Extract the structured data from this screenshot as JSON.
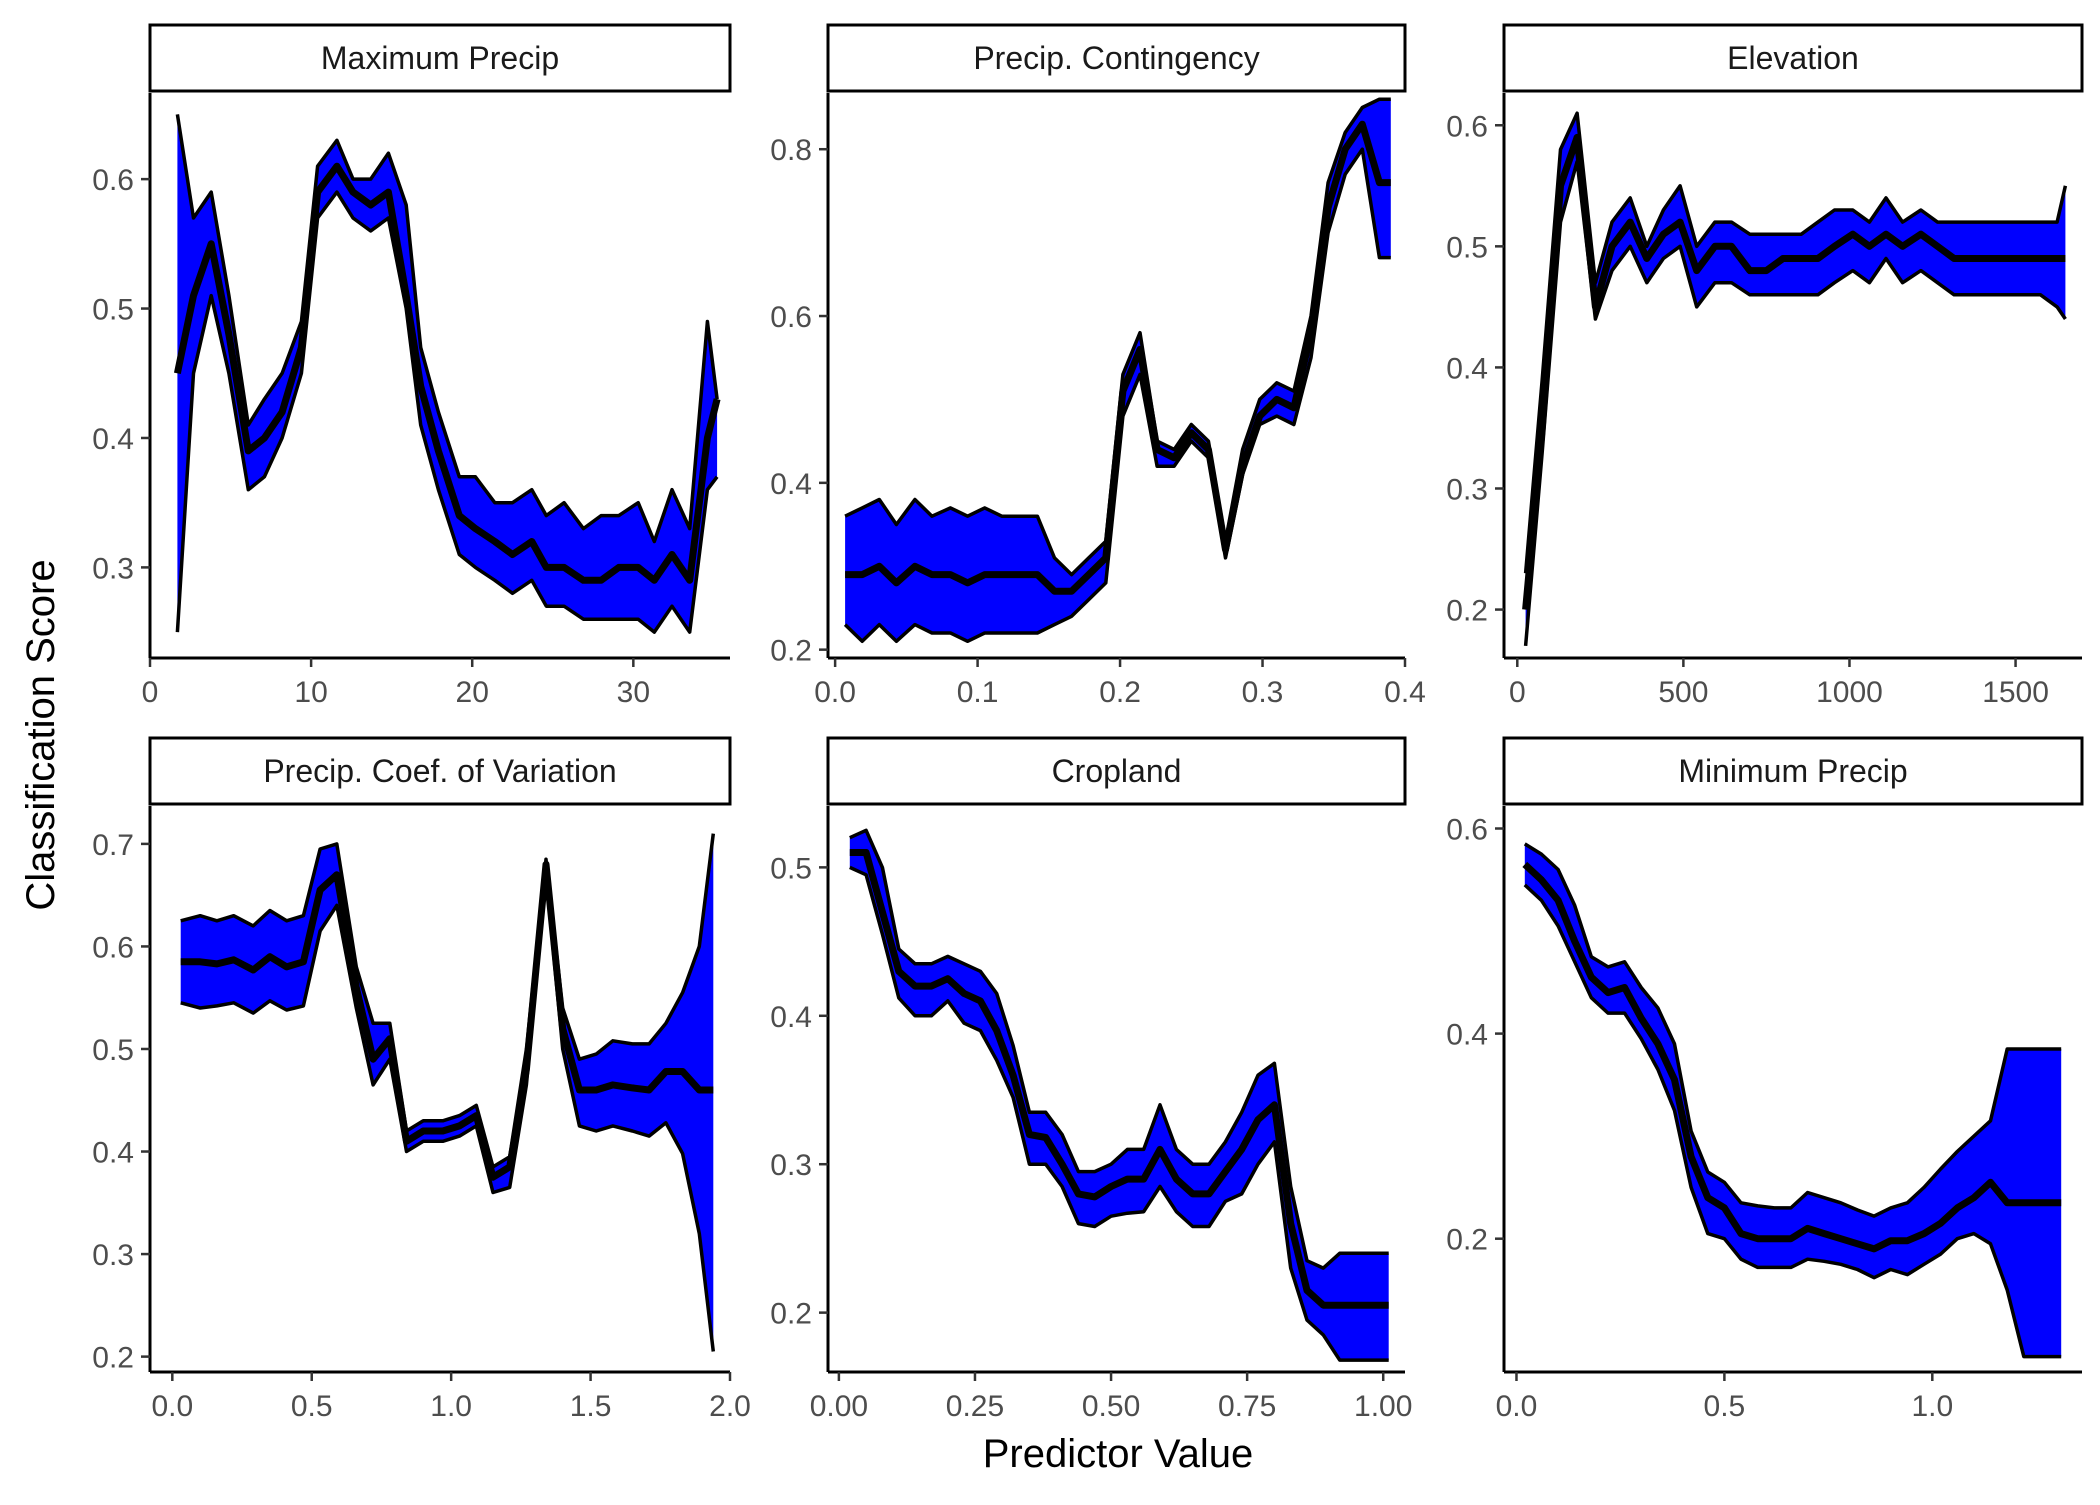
{
  "chart_data": {
    "type": "area",
    "xlabel": "Predictor Value",
    "ylabel": "Classification Score",
    "colors": {
      "band": "#0000ff",
      "line": "#000000"
    },
    "panels": [
      {
        "title": "Maximum Precip",
        "xlim": [
          0,
          36
        ],
        "ylim": [
          0.23,
          0.665
        ],
        "xticks": [
          0,
          10,
          20,
          30
        ],
        "xtick_labels": [
          "0",
          "10",
          "20",
          "30"
        ],
        "yticks": [
          0.3,
          0.4,
          0.5,
          0.6
        ],
        "ytick_labels": [
          "0.3",
          "0.4",
          "0.5",
          "0.6"
        ],
        "x": [
          1.7,
          2.7,
          3.8,
          4.9,
          6.1,
          7.1,
          8.2,
          9.4,
          10.4,
          11.6,
          12.6,
          13.7,
          14.8,
          15.9,
          16.8,
          17.9,
          19.2,
          20.2,
          21.4,
          22.5,
          23.7,
          24.6,
          25.7,
          26.9,
          28.0,
          29.1,
          30.3,
          31.3,
          32.4,
          33.5,
          34.6,
          35.2
        ],
        "mean": [
          0.45,
          0.51,
          0.55,
          0.48,
          0.39,
          0.4,
          0.42,
          0.47,
          0.59,
          0.61,
          0.59,
          0.58,
          0.59,
          0.51,
          0.44,
          0.39,
          0.34,
          0.33,
          0.32,
          0.31,
          0.32,
          0.3,
          0.3,
          0.29,
          0.29,
          0.3,
          0.3,
          0.29,
          0.31,
          0.29,
          0.4,
          0.43
        ],
        "upper": [
          0.65,
          0.57,
          0.59,
          0.51,
          0.41,
          0.43,
          0.45,
          0.49,
          0.61,
          0.63,
          0.6,
          0.6,
          0.62,
          0.58,
          0.47,
          0.42,
          0.37,
          0.37,
          0.35,
          0.35,
          0.36,
          0.34,
          0.35,
          0.33,
          0.34,
          0.34,
          0.35,
          0.32,
          0.36,
          0.33,
          0.49,
          0.43
        ],
        "lower": [
          0.25,
          0.45,
          0.51,
          0.45,
          0.36,
          0.37,
          0.4,
          0.45,
          0.57,
          0.59,
          0.57,
          0.56,
          0.57,
          0.5,
          0.41,
          0.36,
          0.31,
          0.3,
          0.29,
          0.28,
          0.29,
          0.27,
          0.27,
          0.26,
          0.26,
          0.26,
          0.26,
          0.25,
          0.27,
          0.25,
          0.36,
          0.37
        ]
      },
      {
        "title": "Precip. Contingency",
        "xlim": [
          -0.005,
          0.4
        ],
        "ylim": [
          0.19,
          0.865
        ],
        "xticks": [
          0.0,
          0.1,
          0.2,
          0.3,
          0.4
        ],
        "xtick_labels": [
          "0.0",
          "0.1",
          "0.2",
          "0.3",
          "0.4"
        ],
        "yticks": [
          0.2,
          0.4,
          0.6,
          0.8
        ],
        "ytick_labels": [
          "0.2",
          "0.4",
          "0.6",
          "0.8"
        ],
        "x": [
          0.007,
          0.019,
          0.031,
          0.043,
          0.056,
          0.068,
          0.081,
          0.093,
          0.105,
          0.117,
          0.13,
          0.142,
          0.154,
          0.166,
          0.178,
          0.19,
          0.202,
          0.214,
          0.226,
          0.238,
          0.25,
          0.262,
          0.274,
          0.286,
          0.298,
          0.31,
          0.322,
          0.334,
          0.346,
          0.358,
          0.37,
          0.382,
          0.39
        ],
        "mean": [
          0.29,
          0.29,
          0.3,
          0.28,
          0.3,
          0.29,
          0.29,
          0.28,
          0.29,
          0.29,
          0.29,
          0.29,
          0.27,
          0.27,
          0.29,
          0.31,
          0.51,
          0.56,
          0.44,
          0.43,
          0.46,
          0.44,
          0.32,
          0.42,
          0.48,
          0.5,
          0.49,
          0.58,
          0.73,
          0.8,
          0.83,
          0.76,
          0.76
        ],
        "upper": [
          0.36,
          0.37,
          0.38,
          0.35,
          0.38,
          0.36,
          0.37,
          0.36,
          0.37,
          0.36,
          0.36,
          0.36,
          0.31,
          0.29,
          0.31,
          0.33,
          0.53,
          0.58,
          0.45,
          0.44,
          0.47,
          0.45,
          0.33,
          0.44,
          0.5,
          0.52,
          0.51,
          0.6,
          0.76,
          0.82,
          0.85,
          0.86,
          0.86
        ],
        "lower": [
          0.23,
          0.21,
          0.23,
          0.21,
          0.23,
          0.22,
          0.22,
          0.21,
          0.22,
          0.22,
          0.22,
          0.22,
          0.23,
          0.24,
          0.26,
          0.28,
          0.48,
          0.53,
          0.42,
          0.42,
          0.45,
          0.43,
          0.31,
          0.41,
          0.47,
          0.48,
          0.47,
          0.55,
          0.7,
          0.77,
          0.8,
          0.67,
          0.67
        ]
      },
      {
        "title": "Elevation",
        "xlim": [
          -40,
          1700
        ],
        "ylim": [
          0.16,
          0.625
        ],
        "xticks": [
          0,
          500,
          1000,
          1500
        ],
        "xtick_labels": [
          "0",
          "500",
          "1000",
          "1500"
        ],
        "yticks": [
          0.2,
          0.3,
          0.4,
          0.5,
          0.6
        ],
        "ytick_labels": [
          "0.2",
          "0.3",
          "0.4",
          "0.5",
          "0.6"
        ],
        "x": [
          25,
          75,
          130,
          180,
          235,
          285,
          340,
          390,
          440,
          490,
          540,
          595,
          645,
          700,
          750,
          800,
          855,
          905,
          955,
          1010,
          1060,
          1110,
          1160,
          1215,
          1265,
          1315,
          1370,
          1420,
          1470,
          1525,
          1575,
          1625,
          1650
        ],
        "mean": [
          0.2,
          0.35,
          0.55,
          0.59,
          0.45,
          0.5,
          0.52,
          0.49,
          0.51,
          0.52,
          0.48,
          0.5,
          0.5,
          0.48,
          0.48,
          0.49,
          0.49,
          0.49,
          0.5,
          0.51,
          0.5,
          0.51,
          0.5,
          0.51,
          0.5,
          0.49,
          0.49,
          0.49,
          0.49,
          0.49,
          0.49,
          0.49,
          0.49
        ],
        "upper": [
          0.23,
          0.39,
          0.58,
          0.61,
          0.47,
          0.52,
          0.54,
          0.5,
          0.53,
          0.55,
          0.5,
          0.52,
          0.52,
          0.51,
          0.51,
          0.51,
          0.51,
          0.52,
          0.53,
          0.53,
          0.52,
          0.54,
          0.52,
          0.53,
          0.52,
          0.52,
          0.52,
          0.52,
          0.52,
          0.52,
          0.52,
          0.52,
          0.55
        ],
        "lower": [
          0.17,
          0.33,
          0.52,
          0.57,
          0.44,
          0.48,
          0.5,
          0.47,
          0.49,
          0.5,
          0.45,
          0.47,
          0.47,
          0.46,
          0.46,
          0.46,
          0.46,
          0.46,
          0.47,
          0.48,
          0.47,
          0.49,
          0.47,
          0.48,
          0.47,
          0.46,
          0.46,
          0.46,
          0.46,
          0.46,
          0.46,
          0.45,
          0.44
        ]
      },
      {
        "title": "Precip. Coef. of Variation",
        "xlim": [
          -0.08,
          2.0
        ],
        "ylim": [
          0.185,
          0.735
        ],
        "xticks": [
          0.0,
          0.5,
          1.0,
          1.5,
          2.0
        ],
        "xtick_labels": [
          "0.0",
          "0.5",
          "1.0",
          "1.5",
          "2.0"
        ],
        "yticks": [
          0.2,
          0.3,
          0.4,
          0.5,
          0.6,
          0.7
        ],
        "ytick_labels": [
          "0.2",
          "0.3",
          "0.4",
          "0.5",
          "0.6",
          "0.7"
        ],
        "x": [
          0.03,
          0.1,
          0.16,
          0.22,
          0.29,
          0.35,
          0.41,
          0.47,
          0.53,
          0.59,
          0.66,
          0.72,
          0.78,
          0.84,
          0.9,
          0.97,
          1.03,
          1.09,
          1.15,
          1.21,
          1.27,
          1.34,
          1.4,
          1.46,
          1.52,
          1.58,
          1.65,
          1.71,
          1.77,
          1.83,
          1.89,
          1.94
        ],
        "mean": [
          0.585,
          0.585,
          0.583,
          0.587,
          0.577,
          0.59,
          0.58,
          0.585,
          0.655,
          0.67,
          0.56,
          0.49,
          0.51,
          0.41,
          0.42,
          0.42,
          0.425,
          0.435,
          0.375,
          0.385,
          0.48,
          0.68,
          0.52,
          0.46,
          0.46,
          0.465,
          0.462,
          0.46,
          0.478,
          0.478,
          0.46,
          0.46
        ],
        "upper": [
          0.625,
          0.63,
          0.625,
          0.63,
          0.62,
          0.635,
          0.625,
          0.63,
          0.695,
          0.7,
          0.58,
          0.525,
          0.525,
          0.42,
          0.43,
          0.43,
          0.435,
          0.445,
          0.385,
          0.395,
          0.5,
          0.685,
          0.54,
          0.49,
          0.495,
          0.508,
          0.505,
          0.505,
          0.525,
          0.555,
          0.6,
          0.71
        ],
        "lower": [
          0.545,
          0.54,
          0.542,
          0.545,
          0.535,
          0.547,
          0.538,
          0.542,
          0.615,
          0.64,
          0.54,
          0.465,
          0.49,
          0.4,
          0.41,
          0.41,
          0.415,
          0.425,
          0.36,
          0.365,
          0.465,
          0.67,
          0.5,
          0.425,
          0.42,
          0.425,
          0.42,
          0.415,
          0.428,
          0.398,
          0.32,
          0.205
        ]
      },
      {
        "title": "Cropland",
        "xlim": [
          -0.02,
          1.04
        ],
        "ylim": [
          0.16,
          0.54
        ],
        "xticks": [
          0.0,
          0.25,
          0.5,
          0.75,
          1.0
        ],
        "xtick_labels": [
          "0.00",
          "0.25",
          "0.50",
          "0.75",
          "1.00"
        ],
        "yticks": [
          0.2,
          0.3,
          0.4,
          0.5
        ],
        "ytick_labels": [
          "0.2",
          "0.3",
          "0.4",
          "0.5"
        ],
        "x": [
          0.02,
          0.05,
          0.08,
          0.11,
          0.14,
          0.17,
          0.2,
          0.23,
          0.26,
          0.29,
          0.32,
          0.35,
          0.38,
          0.41,
          0.44,
          0.47,
          0.5,
          0.53,
          0.56,
          0.59,
          0.62,
          0.65,
          0.68,
          0.71,
          0.74,
          0.77,
          0.8,
          0.83,
          0.86,
          0.89,
          0.92,
          0.95,
          0.98,
          1.01
        ],
        "mean": [
          0.51,
          0.51,
          0.47,
          0.43,
          0.42,
          0.42,
          0.425,
          0.415,
          0.41,
          0.39,
          0.36,
          0.32,
          0.318,
          0.3,
          0.28,
          0.278,
          0.285,
          0.29,
          0.29,
          0.31,
          0.29,
          0.28,
          0.28,
          0.295,
          0.31,
          0.33,
          0.34,
          0.26,
          0.215,
          0.205,
          0.205,
          0.205,
          0.205,
          0.205
        ],
        "upper": [
          0.52,
          0.525,
          0.5,
          0.445,
          0.435,
          0.435,
          0.44,
          0.435,
          0.43,
          0.415,
          0.38,
          0.335,
          0.335,
          0.32,
          0.295,
          0.295,
          0.3,
          0.31,
          0.31,
          0.34,
          0.31,
          0.3,
          0.3,
          0.315,
          0.335,
          0.36,
          0.368,
          0.285,
          0.235,
          0.23,
          0.24,
          0.24,
          0.24,
          0.24
        ],
        "lower": [
          0.5,
          0.495,
          0.455,
          0.412,
          0.4,
          0.4,
          0.41,
          0.395,
          0.39,
          0.37,
          0.345,
          0.3,
          0.3,
          0.285,
          0.26,
          0.258,
          0.265,
          0.267,
          0.268,
          0.285,
          0.268,
          0.258,
          0.258,
          0.275,
          0.28,
          0.3,
          0.315,
          0.23,
          0.195,
          0.185,
          0.168,
          0.168,
          0.168,
          0.168
        ]
      },
      {
        "title": "Minimum Precip",
        "xlim": [
          -0.03,
          1.36
        ],
        "ylim": [
          0.07,
          0.62
        ],
        "xticks": [
          0.0,
          0.5,
          1.0
        ],
        "xtick_labels": [
          "0.0",
          "0.5",
          "1.0"
        ],
        "yticks": [
          0.2,
          0.4,
          0.6
        ],
        "ytick_labels": [
          "0.2",
          "0.4",
          "0.6"
        ],
        "x": [
          0.02,
          0.06,
          0.1,
          0.14,
          0.18,
          0.22,
          0.26,
          0.3,
          0.34,
          0.38,
          0.42,
          0.46,
          0.5,
          0.54,
          0.58,
          0.62,
          0.66,
          0.7,
          0.74,
          0.78,
          0.82,
          0.86,
          0.9,
          0.94,
          0.98,
          1.02,
          1.06,
          1.1,
          1.14,
          1.18,
          1.22,
          1.26,
          1.3,
          1.31
        ],
        "mean": [
          0.565,
          0.55,
          0.53,
          0.49,
          0.455,
          0.44,
          0.445,
          0.415,
          0.39,
          0.355,
          0.28,
          0.24,
          0.23,
          0.205,
          0.2,
          0.2,
          0.2,
          0.21,
          0.205,
          0.2,
          0.195,
          0.19,
          0.198,
          0.198,
          0.205,
          0.215,
          0.23,
          0.24,
          0.255,
          0.235,
          0.235,
          0.235,
          0.235,
          0.235
        ],
        "upper": [
          0.585,
          0.575,
          0.56,
          0.525,
          0.475,
          0.465,
          0.47,
          0.445,
          0.425,
          0.39,
          0.305,
          0.265,
          0.255,
          0.235,
          0.232,
          0.23,
          0.23,
          0.245,
          0.24,
          0.235,
          0.228,
          0.222,
          0.23,
          0.235,
          0.25,
          0.268,
          0.285,
          0.3,
          0.315,
          0.385,
          0.385,
          0.385,
          0.385,
          0.385
        ],
        "lower": [
          0.545,
          0.53,
          0.505,
          0.47,
          0.435,
          0.42,
          0.42,
          0.395,
          0.365,
          0.325,
          0.25,
          0.205,
          0.2,
          0.18,
          0.172,
          0.172,
          0.172,
          0.18,
          0.178,
          0.175,
          0.17,
          0.162,
          0.17,
          0.165,
          0.175,
          0.185,
          0.2,
          0.205,
          0.195,
          0.15,
          0.085,
          0.085,
          0.085,
          0.085
        ]
      }
    ]
  }
}
